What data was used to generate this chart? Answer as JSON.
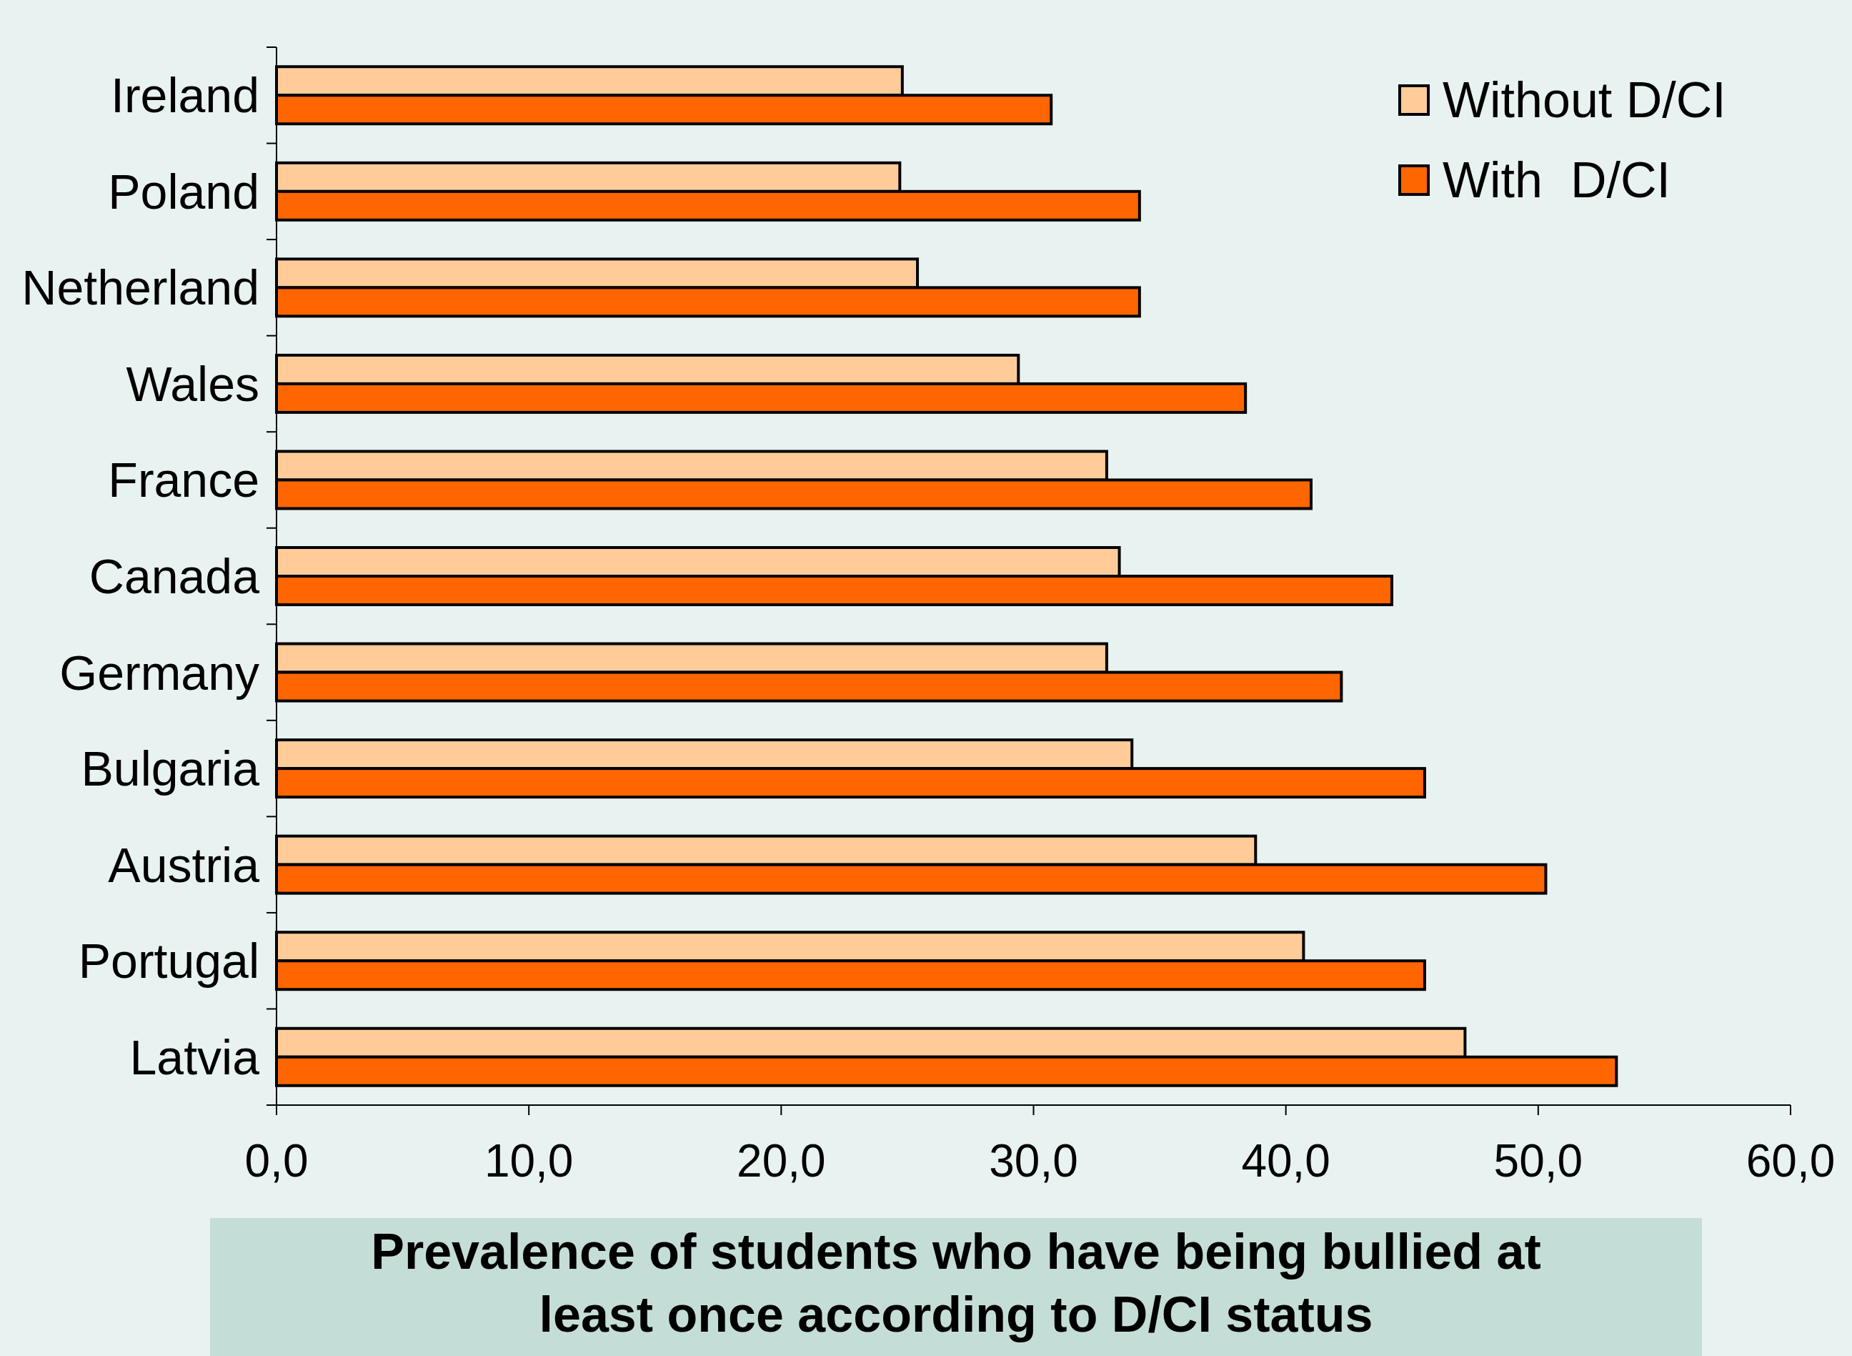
{
  "chart_data": {
    "type": "bar",
    "orientation": "horizontal",
    "title": "Prevalence of students who have being bullied at least once according to D/CI status",
    "categories": [
      "Ireland",
      "Poland",
      "Netherland",
      "Wales",
      "France",
      "Canada",
      "Germany",
      "Bulgaria",
      "Austria",
      "Portugal",
      "Latvia"
    ],
    "series": [
      {
        "name": "Without D/CI",
        "color": "#ffcc99",
        "values": [
          24.8,
          24.7,
          25.4,
          29.4,
          32.9,
          33.4,
          32.9,
          33.9,
          38.8,
          40.7,
          47.1
        ]
      },
      {
        "name": "With  D/CI",
        "color": "#ff6600",
        "values": [
          30.7,
          34.2,
          34.2,
          38.4,
          41.0,
          44.2,
          42.2,
          45.5,
          50.3,
          45.5,
          53.1
        ]
      }
    ],
    "xlim": [
      0,
      60
    ],
    "xticks": [
      {
        "value": 0,
        "label": "0,0"
      },
      {
        "value": 10,
        "label": "10,0"
      },
      {
        "value": 20,
        "label": "20,0"
      },
      {
        "value": 30,
        "label": "30,0"
      },
      {
        "value": 40,
        "label": "40,0"
      },
      {
        "value": 50,
        "label": "50,0"
      },
      {
        "value": 60,
        "label": "60,0"
      }
    ],
    "legend": "top right",
    "grid": false
  }
}
